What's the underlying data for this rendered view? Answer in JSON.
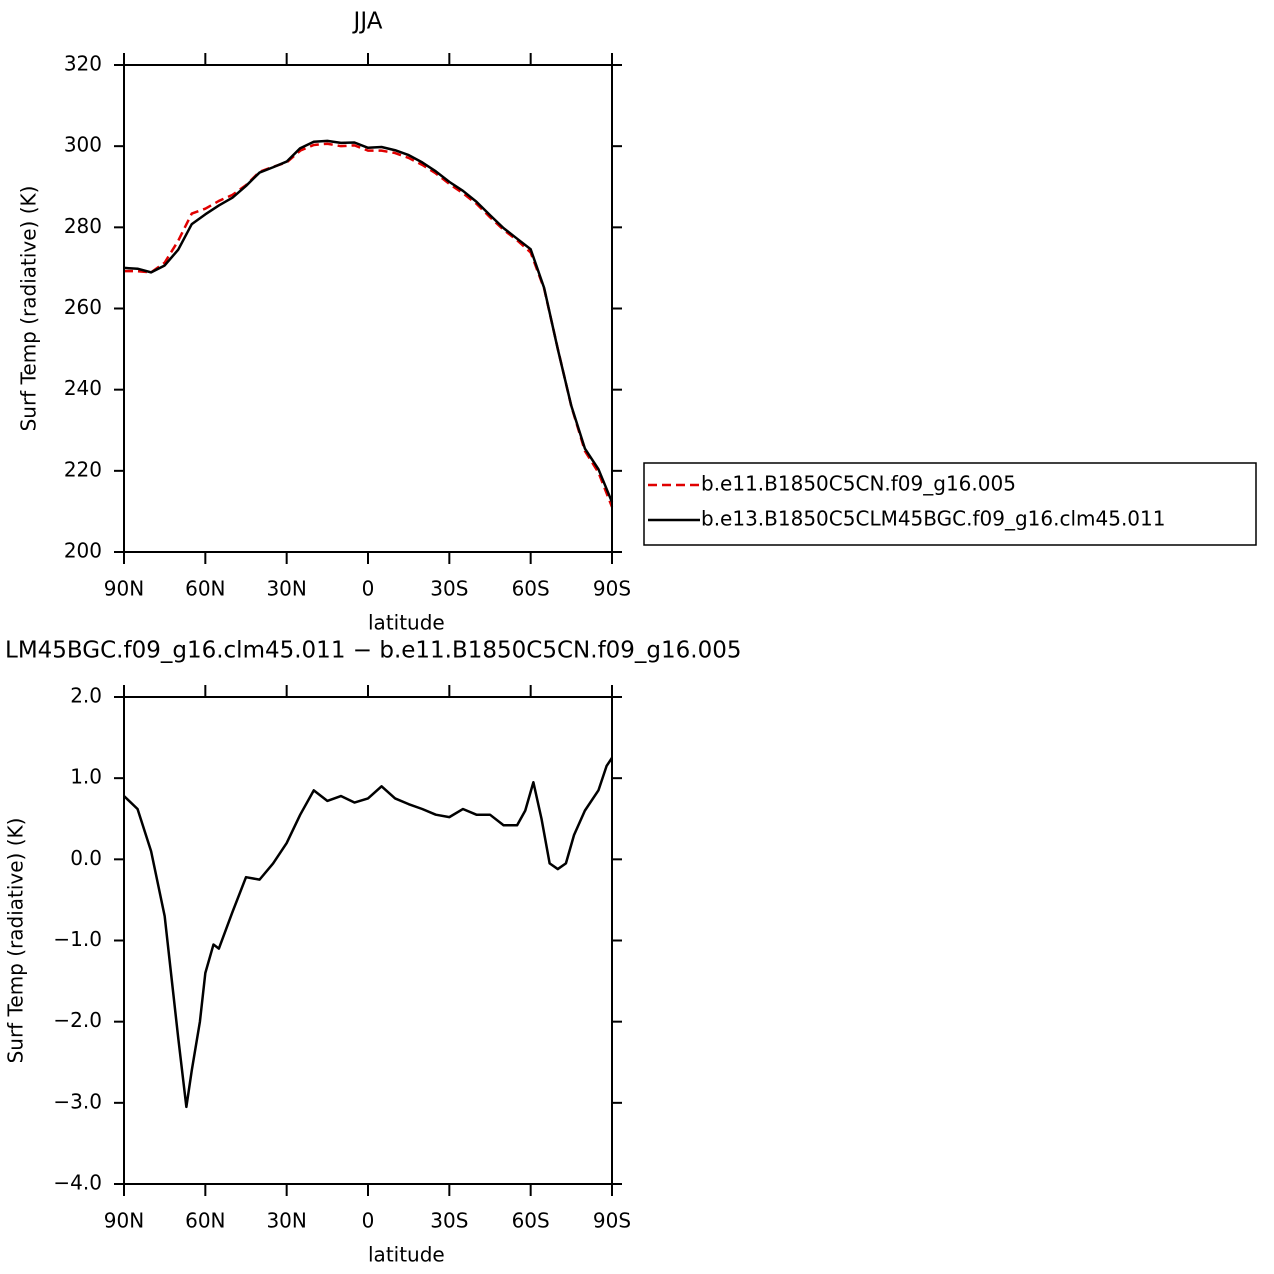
{
  "chart_data": [
    {
      "type": "line",
      "title": "JJA",
      "xlabel": "latitude",
      "ylabel": "Surf Temp (radiative) (K)",
      "x": [
        90,
        85,
        80,
        75,
        70,
        65,
        60,
        55,
        50,
        45,
        40,
        35,
        30,
        25,
        20,
        15,
        10,
        5,
        0,
        -5,
        -10,
        -15,
        -20,
        -25,
        -30,
        -35,
        -40,
        -45,
        -50,
        -55,
        -60,
        -65,
        -70,
        -75,
        -80,
        -85,
        -90
      ],
      "series": [
        {
          "name": "b.e11.B1850C5CN.f09_g16.005",
          "color": "#e00000",
          "linestyle": "dashed",
          "values": [
            269.2,
            269.2,
            268.9,
            271.3,
            276.7,
            283.4,
            284.6,
            286.5,
            288,
            290.4,
            293.7,
            294.9,
            296,
            298.9,
            300.3,
            300.6,
            300,
            300.2,
            298.9,
            298.9,
            298.3,
            297.1,
            295.4,
            293.3,
            290.7,
            288.4,
            285.8,
            282.5,
            279.4,
            276.8,
            273.8,
            264.8,
            250.1,
            235.9,
            224.9,
            219.6,
            211.1
          ]
        },
        {
          "name": "b.e13.B1850C5CLM45BGC.f09_g16.clm45.011",
          "color": "#000000",
          "linestyle": "solid",
          "values": [
            270,
            269.8,
            268.9,
            270.6,
            274.5,
            280.8,
            283.2,
            285.4,
            287.3,
            290.2,
            293.5,
            294.8,
            296.2,
            299.5,
            301.1,
            301.3,
            300.8,
            300.9,
            299.6,
            299.8,
            299,
            297.8,
            296,
            293.8,
            291.2,
            289,
            286.3,
            283,
            279.8,
            277.2,
            274.6,
            265,
            250,
            236,
            225.5,
            220.4,
            212.3
          ]
        }
      ],
      "xlim": [
        90,
        -90
      ],
      "xticks": [
        {
          "value": 90,
          "label": "90N"
        },
        {
          "value": 60,
          "label": "60N"
        },
        {
          "value": 30,
          "label": "30N"
        },
        0,
        {
          "value": -30,
          "label": "30S"
        },
        {
          "value": -60,
          "label": "60S"
        },
        {
          "value": -90,
          "label": "90S"
        }
      ],
      "ylim": [
        200,
        320
      ],
      "yticks": [
        200,
        220,
        240,
        260,
        280,
        300,
        320
      ],
      "legend": "right"
    },
    {
      "type": "line",
      "title": "LM45BGC.f09_g16.clm45.011 − b.e11.B1850C5CN.f09_g16.005",
      "xlabel": "latitude",
      "ylabel": "Surf Temp (radiative) (K)",
      "x": [
        90,
        85,
        80,
        75,
        72,
        70,
        67,
        65,
        62,
        60,
        57,
        55,
        50,
        45,
        40,
        35,
        30,
        25,
        20,
        15,
        10,
        5,
        0,
        -5,
        -10,
        -15,
        -20,
        -25,
        -30,
        -35,
        -40,
        -45,
        -50,
        -55,
        -58,
        -61,
        -64,
        -67,
        -70,
        -73,
        -76,
        -80,
        -85,
        -88,
        -90
      ],
      "values": [
        0.78,
        0.62,
        0.1,
        -0.7,
        -1.6,
        -2.2,
        -3.05,
        -2.6,
        -2.0,
        -1.4,
        -1.05,
        -1.1,
        -0.65,
        -0.22,
        -0.25,
        -0.05,
        0.2,
        0.55,
        0.85,
        0.72,
        0.78,
        0.7,
        0.75,
        0.9,
        0.75,
        0.68,
        0.62,
        0.55,
        0.52,
        0.62,
        0.55,
        0.55,
        0.42,
        0.42,
        0.6,
        0.95,
        0.5,
        -0.05,
        -0.12,
        -0.05,
        0.3,
        0.6,
        0.85,
        1.15,
        1.25
      ],
      "color": "#000000",
      "xlim": [
        90,
        -90
      ],
      "xticks": [
        {
          "value": 90,
          "label": "90N"
        },
        {
          "value": 60,
          "label": "60N"
        },
        {
          "value": 30,
          "label": "30N"
        },
        0,
        {
          "value": -30,
          "label": "30S"
        },
        {
          "value": -60,
          "label": "60S"
        },
        {
          "value": -90,
          "label": "90S"
        }
      ],
      "ylim": [
        -4,
        2
      ],
      "yticks": [
        {
          "value": -4,
          "label": "−4.0"
        },
        {
          "value": -3,
          "label": "−3.0"
        },
        {
          "value": -2,
          "label": "−2.0"
        },
        {
          "value": -1,
          "label": "−1.0"
        },
        {
          "value": 0,
          "label": "0.0"
        },
        {
          "value": 1,
          "label": "1.0"
        },
        {
          "value": 2,
          "label": "2.0"
        }
      ]
    }
  ]
}
